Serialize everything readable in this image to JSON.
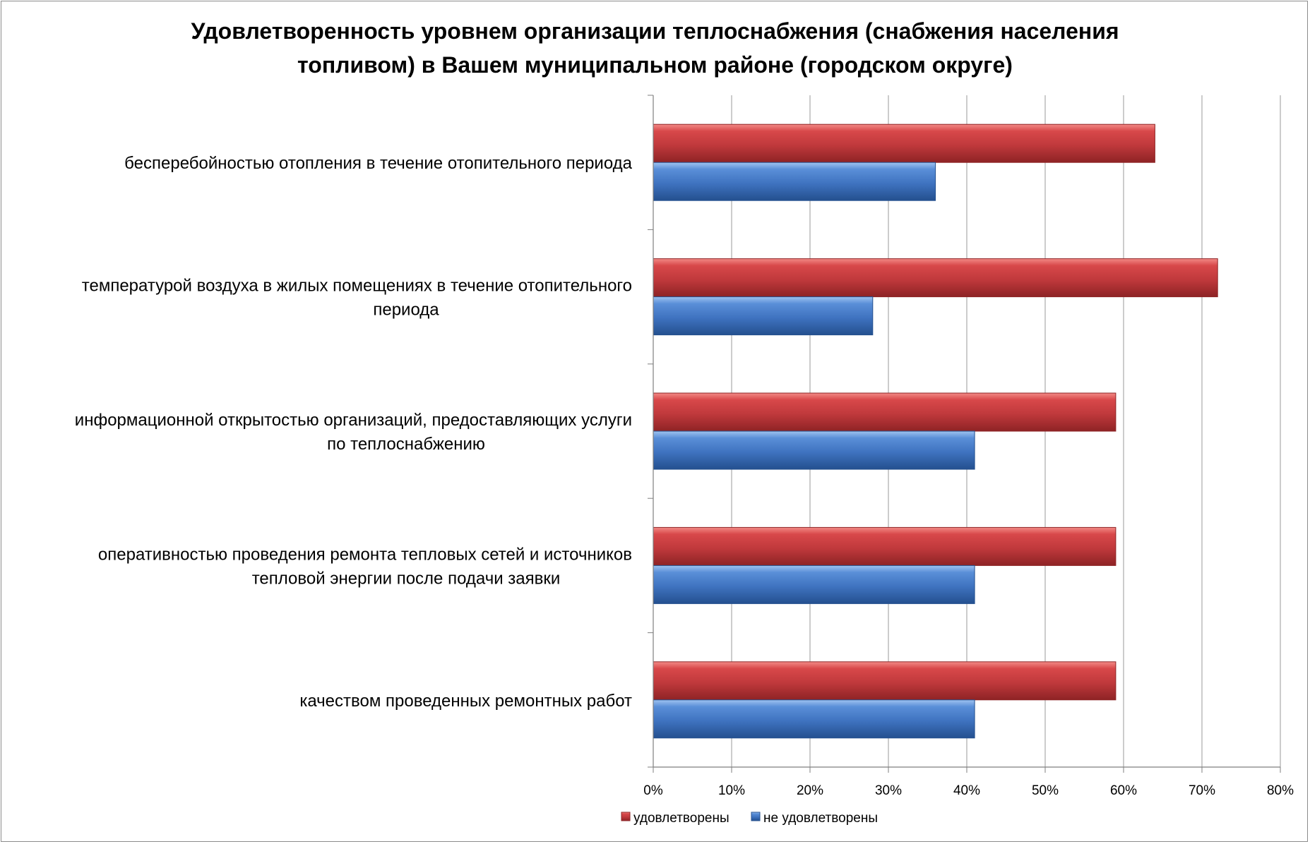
{
  "chart_title": {
    "line1": "Удовлетворенность уровнем организации теплоснабжения (снабжения населения",
    "line2": "топливом) в Вашем муниципальном районе (городском округе)"
  },
  "colors": {
    "satisfied": "#c0393c",
    "not_satisfied": "#3f73c0",
    "grid": "#9a9a9a"
  },
  "chart_data": {
    "type": "bar",
    "orientation": "horizontal",
    "title": "Удовлетворенность уровнем организации теплоснабжения (снабжения населения топливом) в Вашем муниципальном районе (городском округе)",
    "categories": [
      [
        "бесперебойностью  отопления в течение отопительного периода"
      ],
      [
        "температурой  воздуха в жилых помещениях в течение отопительного",
        "периода"
      ],
      [
        "информационной открытостью  организаций, предоставляющих услуги",
        "по теплоснабжению"
      ],
      [
        "оперативностью проведения ремонта тепловых сетей и источников",
        "тепловой энергии после подачи заявки"
      ],
      [
        "качеством проведенных ремонтных работ"
      ]
    ],
    "series": [
      {
        "name": "удовлетворены",
        "values": [
          64,
          72,
          59,
          59,
          59
        ]
      },
      {
        "name": "не удовлетворены",
        "values": [
          36,
          28,
          41,
          41,
          41
        ]
      }
    ],
    "xlim": [
      0,
      80
    ],
    "xticks": [
      "0%",
      "10%",
      "20%",
      "30%",
      "40%",
      "50%",
      "60%",
      "70%",
      "80%"
    ],
    "grid": "vertical",
    "legend_position": "bottom"
  }
}
